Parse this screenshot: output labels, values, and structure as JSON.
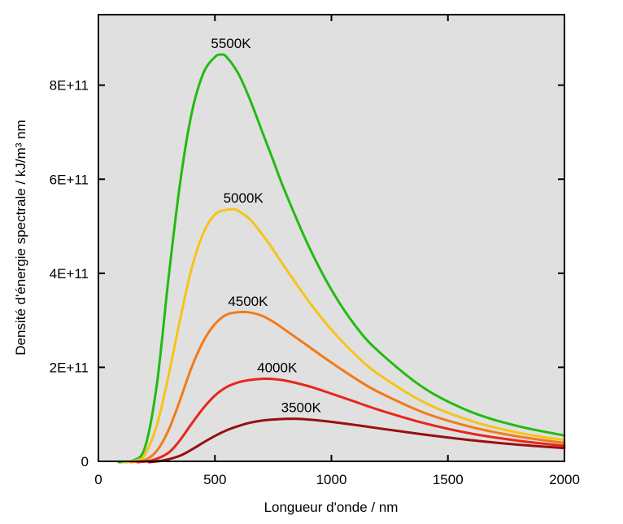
{
  "chart_data": {
    "type": "line",
    "title": "",
    "xlabel": "Longueur d'onde / nm",
    "ylabel": "Densité d'énergie spectrale / kJ/m³ nm",
    "xlim": [
      0,
      2000
    ],
    "ylim": [
      0,
      950000000000.0
    ],
    "xticks": [
      0,
      500,
      1000,
      1500,
      2000
    ],
    "xtick_labels": [
      "0",
      "500",
      "1000",
      "1500",
      "2000"
    ],
    "yticks": [
      0,
      200000000000.0,
      400000000000.0,
      600000000000.0,
      800000000000.0
    ],
    "ytick_labels": [
      "0",
      "2E+11",
      "4E+11",
      "6E+11",
      "8E+11"
    ],
    "grid": false,
    "background": "#e0e0e0",
    "series": [
      {
        "name": "5500K",
        "label": "5500K",
        "temperature_K": 5500,
        "color": "#22bb11",
        "x": [
          150,
          200,
          250,
          300,
          350,
          400,
          450,
          500,
          527,
          550,
          600,
          650,
          700,
          750,
          800,
          900,
          1000,
          1100,
          1200,
          1400,
          1600,
          1800,
          2000
        ],
        "values": [
          2000000000.0,
          30000000000.0,
          160000000000.0,
          385000000000.0,
          590000000000.0,
          740000000000.0,
          825000000000.0,
          860000000000.0,
          865000000000.0,
          860000000000.0,
          825000000000.0,
          770000000000.0,
          705000000000.0,
          640000000000.0,
          575000000000.0,
          460000000000.0,
          365000000000.0,
          290000000000.0,
          235000000000.0,
          155000000000.0,
          105000000000.0,
          75000000000.0,
          55000000000.0
        ]
      },
      {
        "name": "5000K",
        "label": "5000K",
        "temperature_K": 5000,
        "color": "#f5c417",
        "x": [
          170,
          200,
          250,
          300,
          350,
          400,
          450,
          500,
          550,
          580,
          600,
          650,
          700,
          750,
          800,
          900,
          1000,
          1100,
          1200,
          1400,
          1600,
          1800,
          2000
        ],
        "values": [
          3000000000.0,
          15000000000.0,
          75000000000.0,
          180000000000.0,
          300000000000.0,
          410000000000.0,
          485000000000.0,
          525000000000.0,
          535000000000.0,
          536000000000.0,
          533000000000.0,
          515000000000.0,
          485000000000.0,
          450000000000.0,
          413000000000.0,
          342000000000.0,
          280000000000.0,
          228000000000.0,
          186000000000.0,
          125000000000.0,
          86000000000.0,
          61000000000.0,
          45000000000.0
        ]
      },
      {
        "name": "4500K",
        "label": "4500K",
        "temperature_K": 4500,
        "color": "#f27a18",
        "x": [
          200,
          250,
          300,
          350,
          400,
          450,
          500,
          550,
          600,
          644,
          700,
          750,
          800,
          900,
          1000,
          1100,
          1200,
          1400,
          1600,
          1800,
          2000
        ],
        "values": [
          3000000000.0,
          22000000000.0,
          65000000000.0,
          130000000000.0,
          200000000000.0,
          255000000000.0,
          292000000000.0,
          312000000000.0,
          317000000000.0,
          317000000000.0,
          310000000000.0,
          297000000000.0,
          280000000000.0,
          245000000000.0,
          210000000000.0,
          177000000000.0,
          148000000000.0,
          103000000000.0,
          73000000000.0,
          53000000000.0,
          39000000000.0
        ]
      },
      {
        "name": "4000K",
        "label": "4000K",
        "temperature_K": 4000,
        "color": "#e8261a",
        "x": [
          230,
          300,
          350,
          400,
          450,
          500,
          550,
          600,
          650,
          700,
          725,
          750,
          800,
          900,
          1000,
          1100,
          1200,
          1400,
          1600,
          1800,
          2000
        ],
        "values": [
          2000000000.0,
          18000000000.0,
          45000000000.0,
          80000000000.0,
          113000000000.0,
          140000000000.0,
          158000000000.0,
          168000000000.0,
          173000000000.0,
          175500000000.0,
          175600000000.0,
          175000000000.0,
          172000000000.0,
          160000000000.0,
          144000000000.0,
          127000000000.0,
          110000000000.0,
          81000000000.0,
          59000000000.0,
          44000000000.0,
          33000000000.0
        ]
      },
      {
        "name": "3500K",
        "label": "3500K",
        "temperature_K": 3500,
        "color": "#961010",
        "x": [
          280,
          350,
          400,
          450,
          500,
          550,
          600,
          650,
          700,
          750,
          800,
          828,
          850,
          900,
          1000,
          1100,
          1200,
          1400,
          1600,
          1800,
          2000
        ],
        "values": [
          2000000000.0,
          12000000000.0,
          25000000000.0,
          40000000000.0,
          54000000000.0,
          66000000000.0,
          75000000000.0,
          82000000000.0,
          86500000000.0,
          89000000000.0,
          90300000000.0,
          90500000000.0,
          90400000000.0,
          89000000000.0,
          84000000000.0,
          77500000000.0,
          70500000000.0,
          57000000000.0,
          45000000000.0,
          35500000000.0,
          28000000000.0
        ]
      }
    ]
  }
}
